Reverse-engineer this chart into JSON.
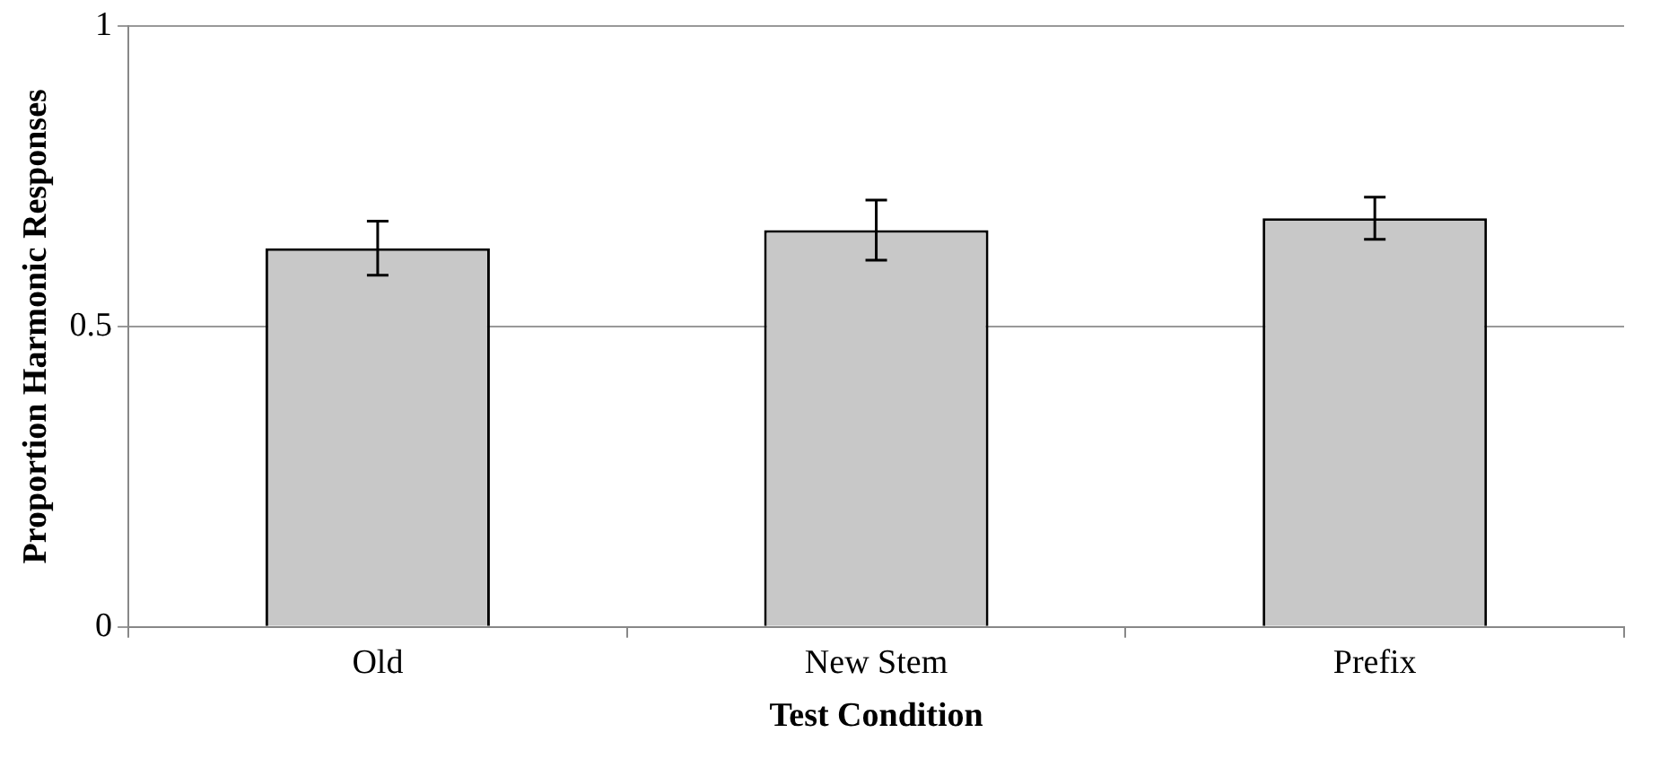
{
  "chart_data": {
    "type": "bar",
    "xlabel": "Test Condition",
    "ylabel": "Proportion Harmonic Responses",
    "categories": [
      "Old",
      "New Stem",
      "Prefix"
    ],
    "values": [
      0.63,
      0.66,
      0.68
    ],
    "errors": [
      0.045,
      0.05,
      0.035
    ],
    "color": "#c8c8c8",
    "ylim": [
      0,
      1
    ],
    "yticks": [
      0,
      0.5,
      1
    ],
    "grid": "y"
  }
}
